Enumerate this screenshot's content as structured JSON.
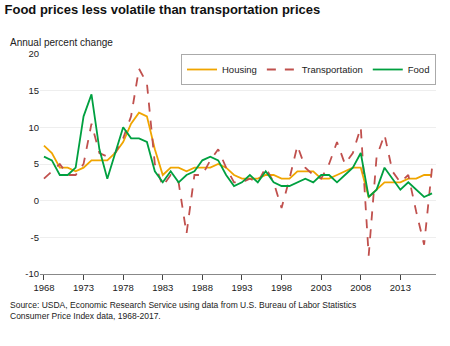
{
  "chart_data": {
    "type": "line",
    "title": "Food prices less volatile than transportation prices",
    "ylabel": "Annual percent change",
    "annotations": [
      "Source: USDA, Economic Research Service using data from U.S. Bureau of Labor Statistics\nConsumer Price Index data, 1968-2017."
    ],
    "x": [
      1968,
      1969,
      1970,
      1971,
      1972,
      1973,
      1974,
      1975,
      1976,
      1977,
      1978,
      1979,
      1980,
      1981,
      1982,
      1983,
      1984,
      1985,
      1986,
      1987,
      1988,
      1989,
      1990,
      1991,
      1992,
      1993,
      1994,
      1995,
      1996,
      1997,
      1998,
      1999,
      2000,
      2001,
      2002,
      2003,
      2004,
      2005,
      2006,
      2007,
      2008,
      2009,
      2010,
      2011,
      2012,
      2013,
      2014,
      2015,
      2016,
      2017
    ],
    "series": [
      {
        "name": "Housing",
        "color": "#F0A500",
        "line_style": "solid",
        "values": [
          7.5,
          6.5,
          4.5,
          4.5,
          4.0,
          4.5,
          5.5,
          5.5,
          5.5,
          6.5,
          8.0,
          10.5,
          12.0,
          11.5,
          7.0,
          3.5,
          4.5,
          4.5,
          4.0,
          4.5,
          4.5,
          4.5,
          5.0,
          4.5,
          3.5,
          3.0,
          3.0,
          3.0,
          3.5,
          3.5,
          3.0,
          3.0,
          4.0,
          4.0,
          4.0,
          3.0,
          3.0,
          3.5,
          4.0,
          4.5,
          4.5,
          0.5,
          1.5,
          2.5,
          2.5,
          2.5,
          3.0,
          3.0,
          3.5,
          3.5
        ]
      },
      {
        "name": "Transportation",
        "color": "#C0504D",
        "line_style": "dashed",
        "values": [
          3.0,
          4.0,
          5.0,
          3.5,
          3.5,
          5.0,
          10.5,
          6.5,
          6.0,
          6.5,
          8.5,
          11.5,
          18.0,
          16.0,
          5.0,
          2.0,
          3.5,
          2.5,
          -4.5,
          3.5,
          3.5,
          5.5,
          7.0,
          4.5,
          2.5,
          2.5,
          3.0,
          2.5,
          4.5,
          2.5,
          -1.0,
          3.0,
          7.5,
          4.5,
          3.5,
          3.0,
          5.0,
          8.0,
          5.0,
          6.5,
          10.0,
          -7.5,
          6.0,
          9.0,
          4.0,
          2.5,
          3.5,
          -1.5,
          -6.0,
          4.5
        ]
      },
      {
        "name": "Food",
        "color": "#00A040",
        "line_style": "solid",
        "values": [
          6.0,
          5.5,
          3.5,
          3.5,
          4.5,
          11.5,
          14.5,
          7.0,
          3.0,
          6.5,
          10.0,
          8.5,
          8.5,
          8.0,
          4.0,
          2.5,
          4.0,
          2.5,
          3.5,
          4.0,
          5.5,
          6.0,
          5.5,
          3.5,
          2.0,
          2.5,
          3.5,
          2.5,
          4.0,
          2.5,
          2.0,
          2.0,
          2.5,
          3.0,
          2.5,
          3.5,
          3.5,
          2.5,
          3.5,
          4.5,
          6.5,
          0.5,
          1.5,
          4.5,
          3.0,
          1.5,
          2.5,
          1.5,
          0.5,
          1.0
        ]
      }
    ],
    "xlim": [
      1967.5,
      2017.5
    ],
    "xticks": [
      1968,
      1973,
      1978,
      1983,
      1988,
      1993,
      1998,
      2003,
      2008,
      2013
    ],
    "ylim": [
      -10,
      20
    ],
    "yticks": [
      -10,
      -5,
      0,
      5,
      10,
      15,
      20
    ],
    "grid": true,
    "legend": "upper right"
  }
}
